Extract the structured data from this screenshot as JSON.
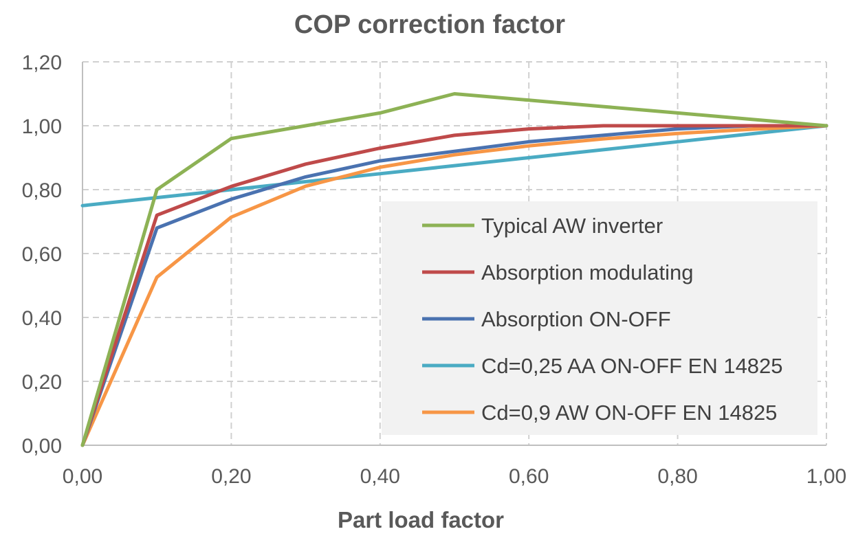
{
  "chart_data": {
    "type": "line",
    "title": "COP correction factor",
    "xlabel": "Part load factor",
    "ylabel": "",
    "xlim": [
      0,
      1
    ],
    "ylim": [
      0,
      1.2
    ],
    "x_ticks": [
      "0,00",
      "0,20",
      "0,40",
      "0,60",
      "0,80",
      "1,00"
    ],
    "y_ticks": [
      "0,00",
      "0,20",
      "0,40",
      "0,60",
      "0,80",
      "1,00",
      "1,20"
    ],
    "grid": true,
    "legend_position": "lower-right",
    "series": [
      {
        "name": "Typical AW inverter",
        "color": "#8db255",
        "points": [
          [
            0,
            0
          ],
          [
            0.1,
            0.8
          ],
          [
            0.2,
            0.96
          ],
          [
            0.3,
            1.0
          ],
          [
            0.4,
            1.04
          ],
          [
            0.5,
            1.1
          ],
          [
            0.6,
            1.08
          ],
          [
            0.7,
            1.06
          ],
          [
            0.8,
            1.04
          ],
          [
            0.9,
            1.02
          ],
          [
            1.0,
            1.0
          ]
        ]
      },
      {
        "name": "Absorption modulating",
        "color": "#bf4a4a",
        "points": [
          [
            0,
            0
          ],
          [
            0.1,
            0.72
          ],
          [
            0.2,
            0.81
          ],
          [
            0.3,
            0.88
          ],
          [
            0.4,
            0.93
          ],
          [
            0.5,
            0.97
          ],
          [
            0.6,
            0.99
          ],
          [
            0.7,
            1.0
          ],
          [
            0.8,
            1.0
          ],
          [
            0.9,
            1.0
          ],
          [
            1.0,
            1.0
          ]
        ]
      },
      {
        "name": "Absorption ON-OFF",
        "color": "#4a72b0",
        "points": [
          [
            0,
            0
          ],
          [
            0.1,
            0.68
          ],
          [
            0.2,
            0.77
          ],
          [
            0.3,
            0.84
          ],
          [
            0.4,
            0.89
          ],
          [
            0.5,
            0.92
          ],
          [
            0.6,
            0.95
          ],
          [
            0.7,
            0.97
          ],
          [
            0.8,
            0.99
          ],
          [
            0.9,
            1.0
          ],
          [
            1.0,
            1.0
          ]
        ]
      },
      {
        "name": "Cd=0,25 AA ON-OFF EN 14825",
        "color": "#4aabc3",
        "points": [
          [
            0,
            0.75
          ],
          [
            0.1,
            0.775
          ],
          [
            0.2,
            0.8
          ],
          [
            0.3,
            0.825
          ],
          [
            0.4,
            0.85
          ],
          [
            0.5,
            0.875
          ],
          [
            0.6,
            0.9
          ],
          [
            0.7,
            0.925
          ],
          [
            0.8,
            0.95
          ],
          [
            0.9,
            0.975
          ],
          [
            1.0,
            1.0
          ]
        ]
      },
      {
        "name": "Cd=0,9 AW ON-OFF EN 14825",
        "color": "#f79646",
        "points": [
          [
            0,
            0
          ],
          [
            0.1,
            0.526
          ],
          [
            0.2,
            0.714
          ],
          [
            0.3,
            0.811
          ],
          [
            0.4,
            0.87
          ],
          [
            0.5,
            0.909
          ],
          [
            0.6,
            0.937
          ],
          [
            0.7,
            0.959
          ],
          [
            0.8,
            0.976
          ],
          [
            0.9,
            0.989
          ],
          [
            1.0,
            1.0
          ]
        ]
      }
    ]
  }
}
